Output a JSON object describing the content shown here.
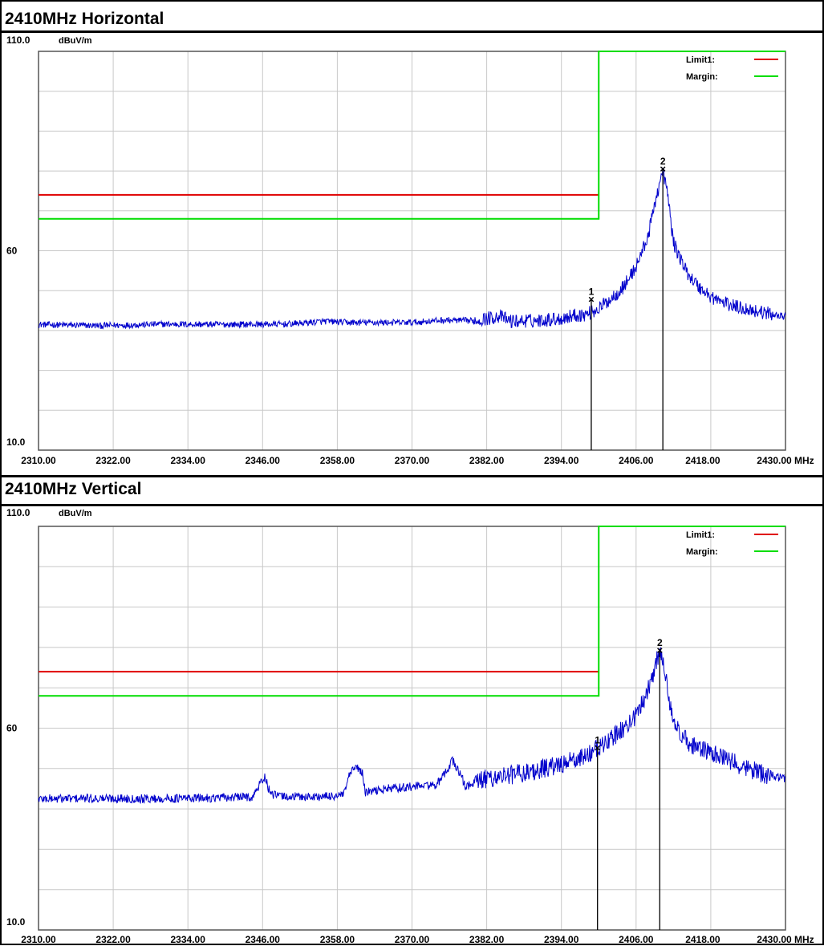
{
  "sections": [
    {
      "title": "2410MHz Horizontal"
    },
    {
      "title": "2410MHz Vertical"
    }
  ],
  "colors": {
    "trace": "#0000cc",
    "limit": "#e00000",
    "margin": "#00dd00",
    "grid": "#c8c8c8",
    "axis_frame": "#555555"
  },
  "chart_data": [
    {
      "type": "line",
      "title": "2410MHz Horizontal",
      "y_unit": "dBuV/m",
      "x_unit": "MHz",
      "xlim": [
        2310.0,
        2430.0
      ],
      "ylim": [
        10.0,
        110.0
      ],
      "x_tick_labels": [
        "2310.00",
        "2322.00",
        "2334.00",
        "2346.00",
        "2358.00",
        "2370.00",
        "2382.00",
        "2394.00",
        "2406.00",
        "2418.00",
        "2430.00"
      ],
      "y_tick_labels": [
        {
          "value": 110,
          "label": "110.0"
        },
        {
          "value": 60,
          "label": "60"
        },
        {
          "value": 10,
          "label": "10.0"
        }
      ],
      "grid": true,
      "legend": {
        "placement": "top-right",
        "entries": [
          {
            "label": "Limit1:",
            "color": "#e00000"
          },
          {
            "label": "Margin:",
            "color": "#00dd00"
          }
        ]
      },
      "limit_line": {
        "x_end": 2400.0,
        "y": 74.0
      },
      "margin_line": {
        "x_end": 2400.0,
        "y": 68.0,
        "upper_y": 110.0
      },
      "trace_points": [
        [
          2310,
          41.5
        ],
        [
          2320,
          41.2
        ],
        [
          2330,
          41.6
        ],
        [
          2340,
          41.5
        ],
        [
          2350,
          41.6
        ],
        [
          2356,
          42.3
        ],
        [
          2360,
          42.0
        ],
        [
          2370,
          42.0
        ],
        [
          2375,
          42.6
        ],
        [
          2380,
          42.4
        ],
        [
          2384,
          43.6
        ],
        [
          2386,
          42.3
        ],
        [
          2390,
          42.5
        ],
        [
          2394,
          43.0
        ],
        [
          2396,
          43.8
        ],
        [
          2398,
          44.0
        ],
        [
          2400,
          45.5
        ],
        [
          2402,
          48.0
        ],
        [
          2404,
          51.0
        ],
        [
          2406,
          56.0
        ],
        [
          2408,
          64.0
        ],
        [
          2409,
          72.0
        ],
        [
          2410.3,
          80.0
        ],
        [
          2411.0,
          75.0
        ],
        [
          2412,
          62.0
        ],
        [
          2414,
          55.0
        ],
        [
          2416,
          51.0
        ],
        [
          2418,
          48.5
        ],
        [
          2420,
          47.0
        ],
        [
          2422,
          46.0
        ],
        [
          2425,
          45.0
        ],
        [
          2428,
          44.0
        ],
        [
          2430,
          43.5
        ]
      ],
      "noise": 0.8,
      "markers": [
        {
          "label": "1",
          "x": 2398.8,
          "y": 47.7
        },
        {
          "label": "2",
          "x": 2410.3,
          "y": 80.4
        }
      ]
    },
    {
      "type": "line",
      "title": "2410MHz Vertical",
      "y_unit": "dBuV/m",
      "x_unit": "MHz",
      "xlim": [
        2310.0,
        2430.0
      ],
      "ylim": [
        10.0,
        110.0
      ],
      "x_tick_labels": [
        "2310.00",
        "2322.00",
        "2334.00",
        "2346.00",
        "2358.00",
        "2370.00",
        "2382.00",
        "2394.00",
        "2406.00",
        "2418.00",
        "2430.00"
      ],
      "y_tick_labels": [
        {
          "value": 110,
          "label": "110.0"
        },
        {
          "value": 60,
          "label": "60"
        },
        {
          "value": 10,
          "label": "10.0"
        }
      ],
      "grid": true,
      "legend": {
        "placement": "top-right",
        "entries": [
          {
            "label": "Limit1:",
            "color": "#e00000"
          },
          {
            "label": "Margin:",
            "color": "#00dd00"
          }
        ]
      },
      "limit_line": {
        "x_end": 2400.0,
        "y": 74.0
      },
      "margin_line": {
        "x_end": 2400.0,
        "y": 68.0,
        "upper_y": 110.0
      },
      "trace_points": [
        [
          2310,
          42.5
        ],
        [
          2320,
          42.6
        ],
        [
          2330,
          42.5
        ],
        [
          2340,
          42.8
        ],
        [
          2344.5,
          43.0
        ],
        [
          2345.5,
          46.0
        ],
        [
          2346.3,
          48.0
        ],
        [
          2347.3,
          43.5
        ],
        [
          2350,
          43.0
        ],
        [
          2356,
          43.0
        ],
        [
          2359,
          43.4
        ],
        [
          2360,
          48.5
        ],
        [
          2361,
          50.5
        ],
        [
          2362,
          49.0
        ],
        [
          2362.5,
          44.0
        ],
        [
          2366,
          45.0
        ],
        [
          2370,
          45.5
        ],
        [
          2374,
          46.0
        ],
        [
          2375,
          48.0
        ],
        [
          2376.5,
          52.0
        ],
        [
          2378,
          48.0
        ],
        [
          2378.5,
          45.5
        ],
        [
          2382,
          47.5
        ],
        [
          2386,
          48.5
        ],
        [
          2390,
          49.5
        ],
        [
          2394,
          51.0
        ],
        [
          2397,
          52.5
        ],
        [
          2400,
          55.0
        ],
        [
          2402,
          57.5
        ],
        [
          2404,
          60.0
        ],
        [
          2406,
          63.0
        ],
        [
          2408,
          70.0
        ],
        [
          2409.8,
          79.0
        ],
        [
          2410.5,
          75.0
        ],
        [
          2411.5,
          66.0
        ],
        [
          2413,
          58.0
        ],
        [
          2416,
          55.0
        ],
        [
          2420,
          52.5
        ],
        [
          2424,
          50.0
        ],
        [
          2427,
          48.5
        ],
        [
          2430,
          47.5
        ]
      ],
      "noise": 1.1,
      "markers": [
        {
          "label": "1",
          "x": 2399.8,
          "y": 55.0
        },
        {
          "label": "2",
          "x": 2409.8,
          "y": 79.2
        }
      ]
    }
  ]
}
